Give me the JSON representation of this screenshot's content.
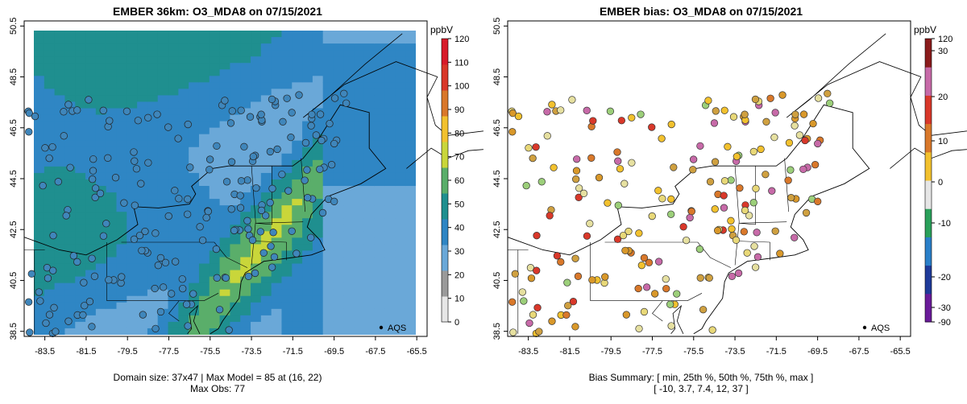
{
  "left": {
    "title": "EMBER 36km: O3_MDA8 on 07/15/2021",
    "x_ticks": [
      "-83.5",
      "-81.5",
      "-79.5",
      "-77.5",
      "-75.5",
      "-73.5",
      "-71.5",
      "-69.5",
      "-67.5",
      "-65.5"
    ],
    "y_ticks": [
      "38.5",
      "40.5",
      "42.5",
      "44.5",
      "46.5",
      "48.5",
      "50.5"
    ],
    "legend_label": "AQS",
    "colorbar_unit": "ppbV",
    "colorbar_ticks": [
      "0",
      "10",
      "20",
      "30",
      "40",
      "50",
      "60",
      "70",
      "80",
      "90",
      "100",
      "110",
      "120"
    ],
    "caption_line1": "Domain size: 37x47 | Max Model = 85 at (16, 22)",
    "caption_line2": "Max Obs: 77"
  },
  "right": {
    "title": "EMBER bias: O3_MDA8 on 07/15/2021",
    "x_ticks": [
      "-83.5",
      "-81.5",
      "-79.5",
      "-77.5",
      "-75.5",
      "-73.5",
      "-71.5",
      "-69.5",
      "-67.5",
      "-65.5"
    ],
    "y_ticks": [
      "38.5",
      "40.5",
      "42.5",
      "44.5",
      "46.5",
      "48.5",
      "50.5"
    ],
    "legend_label": "AQS",
    "colorbar_unit": "ppbV",
    "colorbar_ticks": [
      "-90",
      "-30",
      "-20",
      "-10",
      "0",
      "10",
      "20",
      "30",
      "120"
    ],
    "caption_line1": "Bias Summary: [ min, 25th %, 50th %, 75th %, max ]",
    "caption_line2": "[ -10,   3.7,   7.4,   12,   37 ]"
  },
  "colors": {
    "model_scale": [
      "#e6e6e6",
      "#9a9a9a",
      "#6aa8d8",
      "#2f86c4",
      "#1f8f8f",
      "#5aae6a",
      "#c9d63a",
      "#f2c12e",
      "#d9782a",
      "#d9382a",
      "#d81b2a"
    ],
    "bias_scale": [
      "#6a1b9a",
      "#1e3a9a",
      "#2a7fc9",
      "#2aa05a",
      "#e6e6e6",
      "#f2c12e",
      "#d9782a",
      "#d9382a",
      "#c76aa8",
      "#8a1b1b"
    ],
    "obs_marker": "#3f86bb",
    "land_line": "#000000"
  }
}
